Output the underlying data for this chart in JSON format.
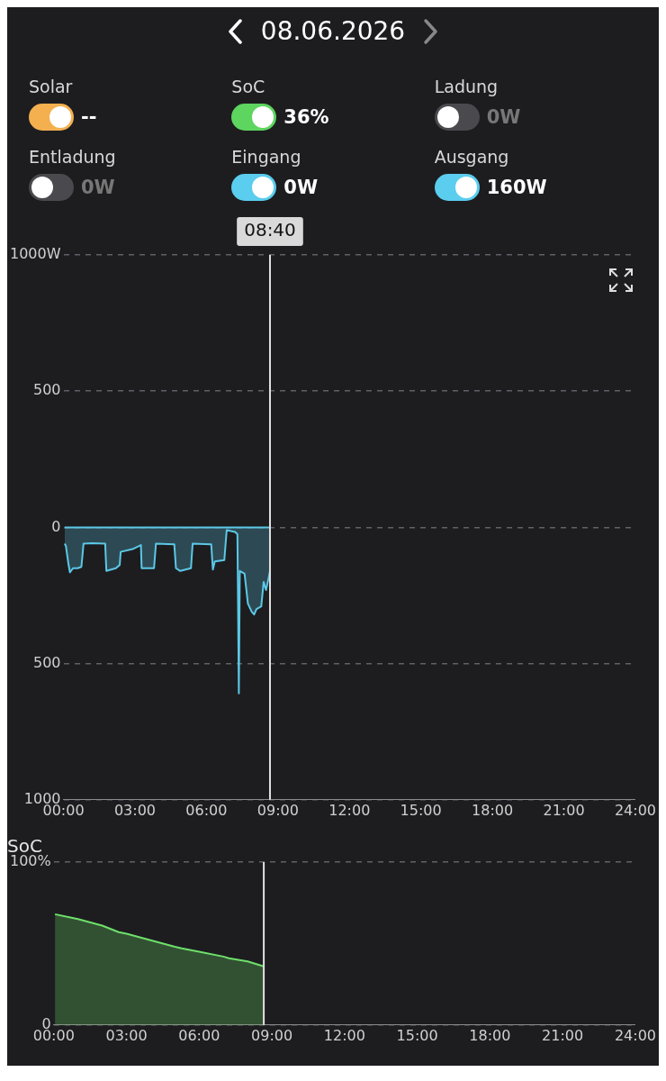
{
  "chart_data": [
    {
      "type": "other",
      "title": "08.06.2026",
      "annotations": [
        "Solar",
        "--",
        "SoC",
        "36%",
        "Ladung",
        "0W",
        "Entladung",
        "0W",
        "Eingang",
        "0W",
        "Ausgang",
        "160W"
      ],
      "colors": [
        "#f4b04f",
        "#5dd55f",
        "#4a4a4e",
        "#4a4a4e",
        "#5bcdee",
        "#5bcdee"
      ]
    },
    {
      "type": "area",
      "xlim": [
        0,
        24
      ],
      "xticks": [
        {
          "value": 0,
          "label": "00:00"
        },
        {
          "value": 3,
          "label": "03:00"
        },
        {
          "value": 6,
          "label": "06:00"
        },
        {
          "value": 9,
          "label": "09:00"
        },
        {
          "value": 12,
          "label": "12:00"
        },
        {
          "value": 15,
          "label": "15:00"
        },
        {
          "value": 18,
          "label": "18:00"
        },
        {
          "value": 21,
          "label": "21:00"
        },
        {
          "value": 24,
          "label": "24:00"
        }
      ],
      "ylim": [
        -1000,
        1000
      ],
      "yticks": [
        {
          "value": 1000,
          "label": "1000W"
        },
        {
          "value": 500,
          "label": "500"
        },
        {
          "value": 0,
          "label": "0"
        },
        {
          "value": -500,
          "label": "500"
        },
        {
          "value": -1000,
          "label": "1000"
        }
      ],
      "grid": "y",
      "legend": false,
      "marker": "none",
      "ref_lines": [
        {
          "axis": "x",
          "value": 8.6667,
          "color": "#e0e0e0"
        }
      ],
      "annotations": [
        "08:40"
      ],
      "series": [
        {
          "type": "line",
          "color": "#5bc8e6",
          "x": [
            0.05,
            8.667
          ],
          "values": [
            0,
            0
          ]
        },
        {
          "type": "area",
          "color": "#5bc8e6",
          "x": [
            0.05,
            0.1,
            0.2,
            0.27,
            0.4,
            0.6,
            0.75,
            0.8,
            0.84,
            1.2,
            1.75,
            1.8,
            2.2,
            2.36,
            2.4,
            2.9,
            3.25,
            3.28,
            3.8,
            3.88,
            4.65,
            4.72,
            4.9,
            5.35,
            5.42,
            6.2,
            6.27,
            6.35,
            6.75,
            6.85,
            7.2,
            7.3,
            7.36,
            7.4,
            7.6,
            7.74,
            7.9,
            8.0,
            8.1,
            8.3,
            8.4,
            8.5,
            8.6,
            8.667
          ],
          "values": [
            -60,
            -68,
            -130,
            -165,
            -150,
            -150,
            -145,
            -100,
            -60,
            -58,
            -60,
            -160,
            -150,
            -138,
            -90,
            -80,
            -65,
            -150,
            -150,
            -60,
            -62,
            -150,
            -160,
            -150,
            -60,
            -62,
            -155,
            -125,
            -120,
            -10,
            -17,
            -25,
            -610,
            -160,
            -170,
            -280,
            -310,
            -320,
            -300,
            -290,
            -200,
            -230,
            -190,
            -160
          ]
        }
      ]
    },
    {
      "type": "area",
      "title": "SoC",
      "xlim": [
        0,
        24
      ],
      "xticks": [
        {
          "value": 0,
          "label": "00:00"
        },
        {
          "value": 3,
          "label": "03:00"
        },
        {
          "value": 6,
          "label": "06:00"
        },
        {
          "value": 9,
          "label": "09:00"
        },
        {
          "value": 12,
          "label": "12:00"
        },
        {
          "value": 15,
          "label": "15:00"
        },
        {
          "value": 18,
          "label": "18:00"
        },
        {
          "value": 21,
          "label": "21:00"
        },
        {
          "value": 24,
          "label": "24:00"
        }
      ],
      "ylim": [
        0,
        100
      ],
      "yticks": [
        {
          "value": 0,
          "label": "0"
        },
        {
          "value": 100,
          "label": "100%"
        }
      ],
      "grid": "y",
      "legend": false,
      "marker": "none",
      "ref_lines": [
        {
          "axis": "x",
          "value": 8.6667,
          "color": "#e0e0e0"
        }
      ],
      "series": [
        {
          "color": "#6ee06a",
          "x": [
            0.05,
            1,
            2,
            2.68,
            3,
            4,
            5,
            5.28,
            6,
            7,
            7.23,
            8,
            8.667
          ],
          "values": [
            68,
            65,
            61,
            57,
            56,
            52,
            48,
            47,
            45,
            42,
            41,
            39,
            36
          ]
        }
      ]
    }
  ]
}
